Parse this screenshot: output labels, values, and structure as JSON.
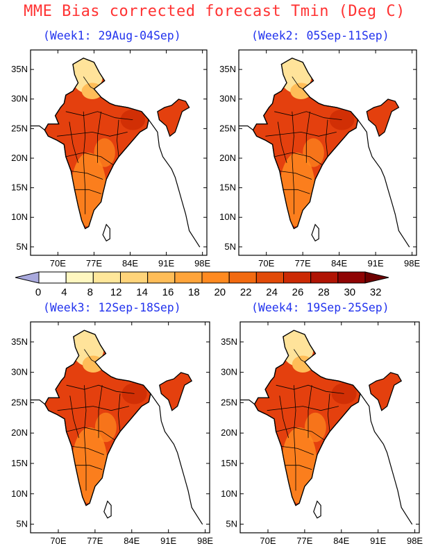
{
  "title": "MME Bias corrected forecast Tmin (Deg C)",
  "panels": [
    {
      "subtitle": "(Week1: 29Aug-04Sep)"
    },
    {
      "subtitle": "(Week2: 05Sep-11Sep)"
    },
    {
      "subtitle": "(Week3: 12Sep-18Sep)"
    },
    {
      "subtitle": "(Week4: 19Sep-25Sep)"
    }
  ],
  "axes": {
    "lat_ticks": [
      "35N",
      "30N",
      "25N",
      "20N",
      "15N",
      "10N",
      "5N"
    ],
    "lon_ticks": [
      "70E",
      "77E",
      "84E",
      "91E",
      "98E"
    ]
  },
  "colorbar": {
    "labels": [
      "0",
      "4",
      "8",
      "12",
      "14",
      "16",
      "18",
      "20",
      "22",
      "24",
      "26",
      "28",
      "30",
      "32"
    ],
    "colors": [
      "#a9a9dd",
      "#ffffff",
      "#fff7c0",
      "#ffe79a",
      "#ffd47a",
      "#ffbd58",
      "#ffa43a",
      "#ff8a20",
      "#f26a10",
      "#e24a08",
      "#cc2a04",
      "#b01404",
      "#8f0404",
      "#6e0000"
    ]
  },
  "map_colors": {
    "base": "#e4400e",
    "north_cool": "#ffe39a",
    "north_mid": "#ffbd58",
    "peninsula": "#ff8a20",
    "east_hot": "#cc2a04"
  }
}
